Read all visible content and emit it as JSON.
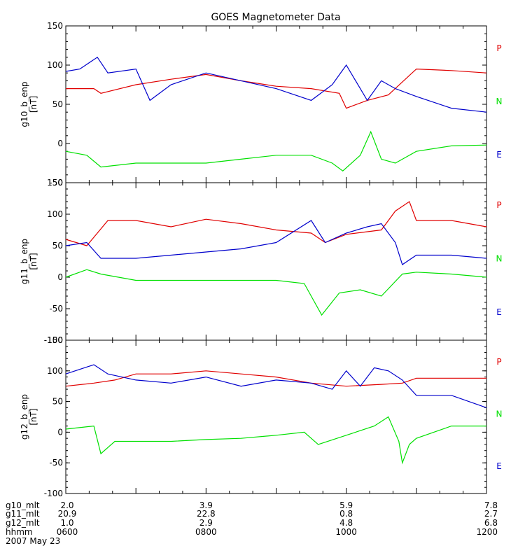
{
  "chart_data": {
    "type": "line",
    "title": "GOES Magnetometer Data",
    "x_ticks_hhmm": [
      "0600",
      "0800",
      "1000",
      "1200"
    ],
    "x_range_hours": [
      6,
      12
    ],
    "series_colors": {
      "P": "#e00000",
      "N": "#00e000",
      "E": "#0000cc"
    },
    "panels": [
      {
        "ylabel": "g10_b_enp",
        "yunits": "[nT]",
        "ylim": [
          -50,
          150
        ],
        "yticks": [
          "150",
          "100",
          "50",
          "0",
          "-50"
        ],
        "series": [
          {
            "name": "P",
            "x": [
              6.0,
              6.4,
              6.5,
              7.0,
              7.5,
              8.0,
              8.5,
              9.0,
              9.5,
              9.9,
              10.0,
              10.3,
              10.6,
              11.0,
              11.5,
              12.0
            ],
            "y": [
              70,
              70,
              64,
              75,
              82,
              88,
              80,
              73,
              70,
              64,
              45,
              55,
              62,
              95,
              93,
              90
            ]
          },
          {
            "name": "N",
            "x": [
              6.0,
              6.3,
              6.5,
              7.0,
              7.5,
              8.0,
              8.5,
              9.0,
              9.5,
              9.8,
              9.95,
              10.2,
              10.35,
              10.5,
              10.7,
              11.0,
              11.5,
              12.0
            ],
            "y": [
              -10,
              -15,
              -30,
              -25,
              -25,
              -25,
              -20,
              -15,
              -15,
              -25,
              -35,
              -15,
              15,
              -20,
              -25,
              -10,
              -3,
              -2
            ]
          },
          {
            "name": "E",
            "x": [
              6.0,
              6.2,
              6.45,
              6.6,
              7.0,
              7.2,
              7.5,
              8.0,
              8.5,
              9.0,
              9.5,
              9.8,
              10.0,
              10.3,
              10.5,
              10.7,
              11.0,
              11.5,
              12.0
            ],
            "y": [
              92,
              95,
              110,
              90,
              95,
              55,
              75,
              90,
              80,
              70,
              55,
              75,
              100,
              55,
              80,
              70,
              60,
              45,
              40
            ]
          }
        ]
      },
      {
        "ylabel": "g11_b_enp",
        "yunits": "[nT]",
        "ylim": [
          -100,
          150
        ],
        "yticks": [
          "150",
          "100",
          "50",
          "0",
          "-50",
          "-100"
        ],
        "series": [
          {
            "name": "P",
            "x": [
              6.0,
              6.3,
              6.6,
              7.0,
              7.5,
              8.0,
              8.5,
              9.0,
              9.5,
              9.7,
              10.0,
              10.5,
              10.7,
              10.9,
              11.0,
              11.5,
              12.0
            ],
            "y": [
              60,
              50,
              90,
              90,
              80,
              92,
              85,
              75,
              70,
              55,
              68,
              75,
              105,
              120,
              90,
              90,
              80
            ]
          },
          {
            "name": "N",
            "x": [
              6.0,
              6.3,
              6.5,
              7.0,
              7.5,
              8.0,
              8.5,
              9.0,
              9.4,
              9.65,
              9.9,
              10.2,
              10.5,
              10.8,
              11.0,
              11.5,
              12.0
            ],
            "y": [
              0,
              12,
              5,
              -5,
              -5,
              -5,
              -5,
              -5,
              -10,
              -60,
              -25,
              -20,
              -30,
              5,
              8,
              5,
              0
            ]
          },
          {
            "name": "E",
            "x": [
              6.0,
              6.3,
              6.5,
              7.0,
              7.5,
              8.0,
              8.5,
              9.0,
              9.5,
              9.7,
              10.0,
              10.3,
              10.5,
              10.7,
              10.8,
              11.0,
              11.5,
              12.0
            ],
            "y": [
              50,
              55,
              30,
              30,
              35,
              40,
              45,
              55,
              90,
              55,
              70,
              80,
              85,
              55,
              20,
              35,
              35,
              30
            ]
          }
        ]
      },
      {
        "ylabel": "g12_b_enp",
        "yunits": "[nT]",
        "ylim": [
          -100,
          150
        ],
        "yticks": [
          "150",
          "100",
          "50",
          "0",
          "-50",
          "-100"
        ],
        "series": [
          {
            "name": "P",
            "x": [
              6.0,
              6.4,
              6.7,
              7.0,
              7.5,
              8.0,
              8.5,
              9.0,
              9.5,
              10.0,
              10.5,
              10.8,
              11.0,
              11.5,
              12.0
            ],
            "y": [
              75,
              80,
              85,
              95,
              95,
              100,
              95,
              90,
              80,
              75,
              78,
              80,
              88,
              88,
              88
            ]
          },
          {
            "name": "N",
            "x": [
              6.0,
              6.4,
              6.5,
              6.7,
              7.0,
              7.5,
              8.0,
              8.5,
              9.0,
              9.4,
              9.6,
              10.0,
              10.4,
              10.6,
              10.75,
              10.8,
              10.9,
              11.0,
              11.5,
              12.0
            ],
            "y": [
              5,
              10,
              -35,
              -15,
              -15,
              -15,
              -12,
              -10,
              -5,
              0,
              -20,
              -5,
              10,
              25,
              -15,
              -50,
              -20,
              -10,
              10,
              10
            ]
          },
          {
            "name": "E",
            "x": [
              6.0,
              6.4,
              6.6,
              7.0,
              7.5,
              8.0,
              8.5,
              9.0,
              9.5,
              9.8,
              10.0,
              10.2,
              10.4,
              10.6,
              10.8,
              11.0,
              11.5,
              12.0
            ],
            "y": [
              95,
              110,
              95,
              85,
              80,
              90,
              75,
              85,
              80,
              70,
              100,
              75,
              105,
              100,
              85,
              60,
              60,
              40
            ]
          }
        ]
      }
    ],
    "footer": {
      "rows": [
        {
          "label": "g10_mlt",
          "values": [
            "2.0",
            "3.9",
            "5.9",
            "7.8"
          ]
        },
        {
          "label": "g11_mlt",
          "values": [
            "20.9",
            "22.8",
            "0.8",
            "2.7"
          ]
        },
        {
          "label": "g12_mlt",
          "values": [
            "1.0",
            "2.9",
            "4.8",
            "6.8"
          ]
        },
        {
          "label": "hhmm",
          "values": [
            "0600",
            "0800",
            "1000",
            "1200"
          ]
        }
      ],
      "date": "2007 May 23"
    }
  }
}
